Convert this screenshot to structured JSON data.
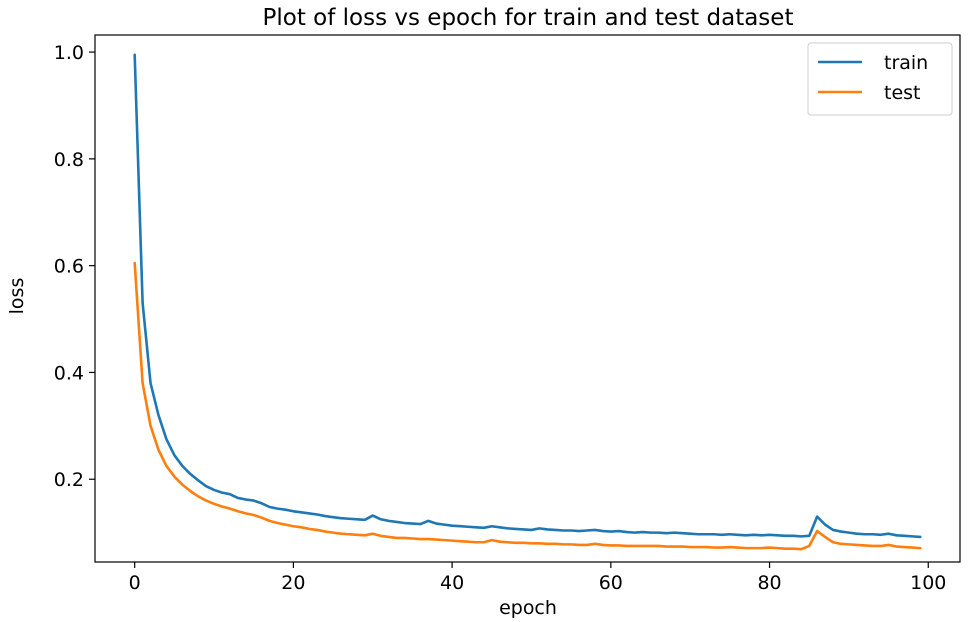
{
  "chart_data": {
    "type": "line",
    "title": "Plot of loss vs epoch for train and test dataset",
    "xlabel": "epoch",
    "ylabel": "loss",
    "xlim": [
      -5,
      104
    ],
    "ylim": [
      0.045,
      1.032
    ],
    "xticks": [
      0,
      20,
      40,
      60,
      80,
      100
    ],
    "yticks": [
      0.2,
      0.4,
      0.6,
      0.8,
      1.0
    ],
    "xtick_labels": [
      "0",
      "20",
      "40",
      "60",
      "80",
      "100"
    ],
    "ytick_labels": [
      "0.2",
      "0.4",
      "0.6",
      "0.8",
      "1.0"
    ],
    "grid": false,
    "legend_position": "top-right",
    "series": [
      {
        "name": "train",
        "color": "#1f77b4",
        "x": [
          0,
          1,
          2,
          3,
          4,
          5,
          6,
          7,
          8,
          9,
          10,
          11,
          12,
          13,
          14,
          15,
          16,
          17,
          18,
          19,
          20,
          21,
          22,
          23,
          24,
          25,
          26,
          27,
          28,
          29,
          30,
          31,
          32,
          33,
          34,
          35,
          36,
          37,
          38,
          39,
          40,
          41,
          42,
          43,
          44,
          45,
          46,
          47,
          48,
          49,
          50,
          51,
          52,
          53,
          54,
          55,
          56,
          57,
          58,
          59,
          60,
          61,
          62,
          63,
          64,
          65,
          66,
          67,
          68,
          69,
          70,
          71,
          72,
          73,
          74,
          75,
          76,
          77,
          78,
          79,
          80,
          81,
          82,
          83,
          84,
          85,
          86,
          87,
          88,
          89,
          90,
          91,
          92,
          93,
          94,
          95,
          96,
          97,
          98,
          99
        ],
        "values": [
          0.995,
          0.53,
          0.38,
          0.32,
          0.275,
          0.245,
          0.225,
          0.21,
          0.198,
          0.187,
          0.18,
          0.175,
          0.172,
          0.165,
          0.162,
          0.16,
          0.155,
          0.148,
          0.145,
          0.143,
          0.14,
          0.138,
          0.136,
          0.134,
          0.131,
          0.129,
          0.127,
          0.126,
          0.125,
          0.124,
          0.132,
          0.125,
          0.122,
          0.12,
          0.118,
          0.117,
          0.116,
          0.122,
          0.117,
          0.115,
          0.113,
          0.112,
          0.111,
          0.11,
          0.109,
          0.112,
          0.11,
          0.108,
          0.107,
          0.106,
          0.105,
          0.108,
          0.106,
          0.105,
          0.104,
          0.104,
          0.103,
          0.104,
          0.105,
          0.103,
          0.102,
          0.103,
          0.101,
          0.1,
          0.101,
          0.1,
          0.1,
          0.099,
          0.1,
          0.099,
          0.098,
          0.097,
          0.097,
          0.097,
          0.096,
          0.097,
          0.096,
          0.095,
          0.096,
          0.095,
          0.096,
          0.095,
          0.094,
          0.094,
          0.093,
          0.094,
          0.13,
          0.115,
          0.105,
          0.102,
          0.1,
          0.098,
          0.097,
          0.097,
          0.096,
          0.098,
          0.095,
          0.094,
          0.093,
          0.092
        ]
      },
      {
        "name": "test",
        "color": "#ff7f0e",
        "x": [
          0,
          1,
          2,
          3,
          4,
          5,
          6,
          7,
          8,
          9,
          10,
          11,
          12,
          13,
          14,
          15,
          16,
          17,
          18,
          19,
          20,
          21,
          22,
          23,
          24,
          25,
          26,
          27,
          28,
          29,
          30,
          31,
          32,
          33,
          34,
          35,
          36,
          37,
          38,
          39,
          40,
          41,
          42,
          43,
          44,
          45,
          46,
          47,
          48,
          49,
          50,
          51,
          52,
          53,
          54,
          55,
          56,
          57,
          58,
          59,
          60,
          61,
          62,
          63,
          64,
          65,
          66,
          67,
          68,
          69,
          70,
          71,
          72,
          73,
          74,
          75,
          76,
          77,
          78,
          79,
          80,
          81,
          82,
          83,
          84,
          85,
          86,
          87,
          88,
          89,
          90,
          91,
          92,
          93,
          94,
          95,
          96,
          97,
          98,
          99
        ],
        "values": [
          0.605,
          0.38,
          0.3,
          0.255,
          0.225,
          0.205,
          0.19,
          0.178,
          0.168,
          0.16,
          0.154,
          0.149,
          0.145,
          0.14,
          0.136,
          0.133,
          0.128,
          0.122,
          0.118,
          0.115,
          0.112,
          0.11,
          0.107,
          0.105,
          0.102,
          0.1,
          0.098,
          0.097,
          0.096,
          0.095,
          0.098,
          0.094,
          0.092,
          0.09,
          0.09,
          0.089,
          0.088,
          0.088,
          0.087,
          0.086,
          0.085,
          0.084,
          0.083,
          0.082,
          0.082,
          0.086,
          0.083,
          0.082,
          0.081,
          0.081,
          0.08,
          0.08,
          0.079,
          0.079,
          0.078,
          0.078,
          0.077,
          0.077,
          0.079,
          0.077,
          0.076,
          0.076,
          0.075,
          0.075,
          0.075,
          0.075,
          0.075,
          0.074,
          0.074,
          0.074,
          0.073,
          0.073,
          0.073,
          0.072,
          0.072,
          0.073,
          0.072,
          0.071,
          0.071,
          0.071,
          0.072,
          0.071,
          0.07,
          0.07,
          0.069,
          0.075,
          0.103,
          0.092,
          0.082,
          0.079,
          0.078,
          0.077,
          0.076,
          0.075,
          0.075,
          0.077,
          0.074,
          0.073,
          0.072,
          0.071
        ]
      }
    ]
  }
}
